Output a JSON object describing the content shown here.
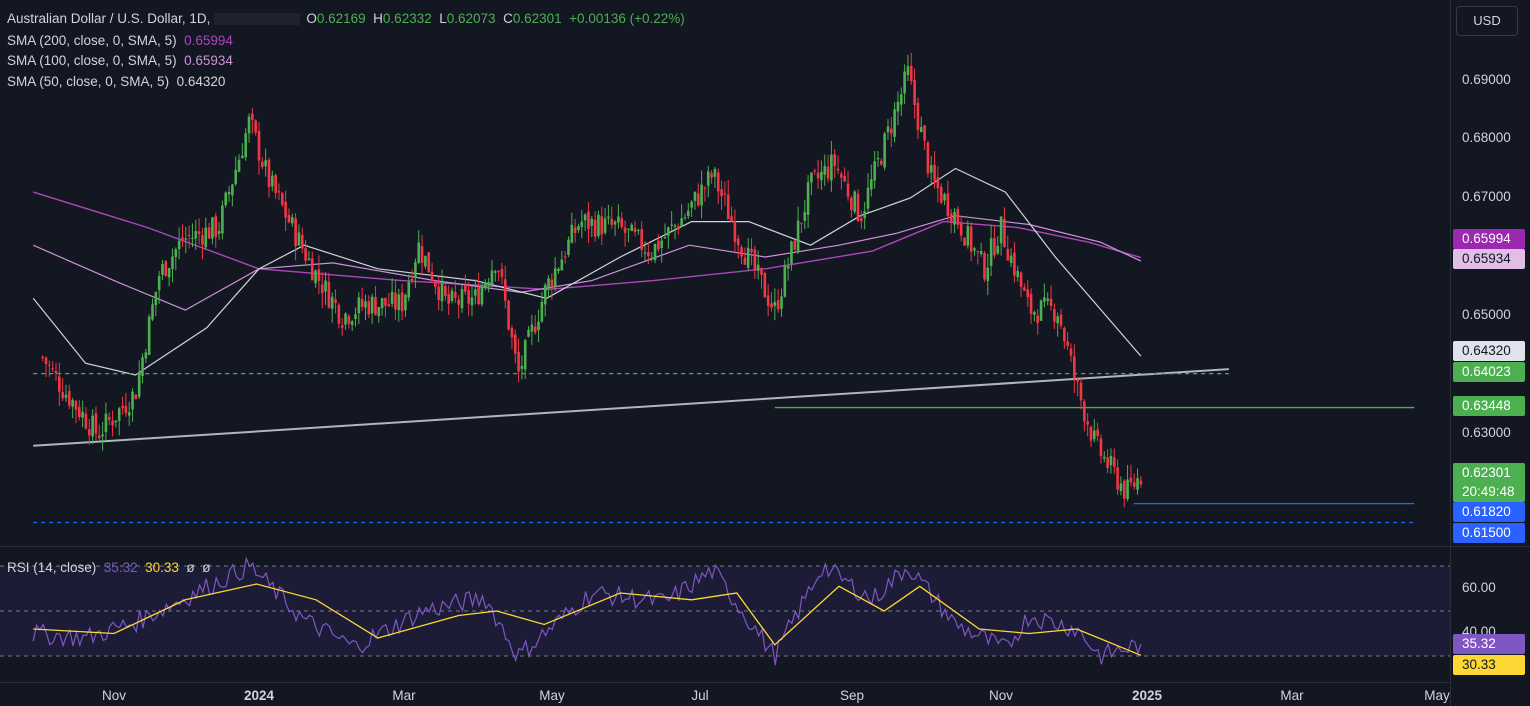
{
  "header": {
    "symbol": "Australian Dollar / U.S. Dollar, 1D,",
    "open_label": "O",
    "open": "0.62169",
    "high_label": "H",
    "high": "0.62332",
    "low_label": "L",
    "low": "0.62073",
    "close_label": "C",
    "close": "0.62301",
    "change": "+0.00136 (+0.22%)"
  },
  "indicators": [
    {
      "label": "SMA (200, close, 0, SMA, 5)",
      "value": "0.65994",
      "color": "#ab47bc"
    },
    {
      "label": "SMA (100, close, 0, SMA, 5)",
      "value": "0.65934",
      "color": "#ce93d8"
    },
    {
      "label": "SMA (50, close, 0, SMA, 5)",
      "value": "0.64320",
      "color": "#d1d4dc"
    }
  ],
  "currency": "USD",
  "rsi": {
    "label": "RSI (14, close)",
    "value": "35.32",
    "ma_value": "30.33",
    "extra1": "ø",
    "extra2": "ø",
    "ticks": [
      "60.00",
      "40.00"
    ],
    "levels": [
      70,
      50,
      30
    ],
    "tag_rsi": "35.32",
    "tag_ma": "30.33"
  },
  "price_tags": [
    {
      "text": "0.65994",
      "bg": "#9c27b0",
      "fg": "#ffffff"
    },
    {
      "text": "0.65934",
      "bg": "#e1bee7",
      "fg": "#131722"
    },
    {
      "text": "0.64320",
      "bg": "#e0e3eb",
      "fg": "#131722"
    },
    {
      "text": "0.64023",
      "bg": "#4caf50",
      "fg": "#ffffff"
    },
    {
      "text": "0.63448",
      "bg": "#4caf50",
      "fg": "#ffffff"
    },
    {
      "text": "0.62301",
      "bg": "#4caf50",
      "fg": "#ffffff"
    },
    {
      "text": "20:49:48",
      "bg": "#4caf50",
      "fg": "#ffffff"
    },
    {
      "text": "0.61820",
      "bg": "#2962ff",
      "fg": "#ffffff"
    },
    {
      "text": "0.61500",
      "bg": "#2962ff",
      "fg": "#ffffff"
    }
  ],
  "chart_data": {
    "type": "candlestick",
    "title": "Australian Dollar / U.S. Dollar, 1D",
    "y_ticks": [
      "0.69000",
      "0.68000",
      "0.67000",
      "0.65000",
      "0.63000"
    ],
    "ylim": [
      0.6135,
      0.6955
    ],
    "x_ticks": [
      "Nov",
      "2024",
      "Mar",
      "May",
      "Jul",
      "Sep",
      "Nov",
      "2025",
      "Mar",
      "May"
    ],
    "close_path": [
      [
        "2023-10-02",
        0.643
      ],
      [
        "2023-10-10",
        0.638
      ],
      [
        "2023-10-25",
        0.63
      ],
      [
        "2023-11-01",
        0.633
      ],
      [
        "2023-11-10",
        0.637
      ],
      [
        "2023-11-20",
        0.657
      ],
      [
        "2023-11-30",
        0.663
      ],
      [
        "2023-12-15",
        0.665
      ],
      [
        "2023-12-28",
        0.683
      ],
      [
        "2024-01-05",
        0.673
      ],
      [
        "2024-01-15",
        0.665
      ],
      [
        "2024-01-25",
        0.657
      ],
      [
        "2024-02-05",
        0.65
      ],
      [
        "2024-02-15",
        0.652
      ],
      [
        "2024-03-01",
        0.652
      ],
      [
        "2024-03-08",
        0.662
      ],
      [
        "2024-03-20",
        0.652
      ],
      [
        "2024-04-01",
        0.653
      ],
      [
        "2024-04-10",
        0.66
      ],
      [
        "2024-04-19",
        0.64
      ],
      [
        "2024-05-01",
        0.655
      ],
      [
        "2024-05-15",
        0.666
      ],
      [
        "2024-05-31",
        0.665
      ],
      [
        "2024-06-14",
        0.661
      ],
      [
        "2024-06-28",
        0.667
      ],
      [
        "2024-07-10",
        0.674
      ],
      [
        "2024-07-22",
        0.662
      ],
      [
        "2024-08-05",
        0.651
      ],
      [
        "2024-08-20",
        0.672
      ],
      [
        "2024-08-30",
        0.676
      ],
      [
        "2024-09-10",
        0.667
      ],
      [
        "2024-09-30",
        0.691
      ],
      [
        "2024-10-10",
        0.673
      ],
      [
        "2024-10-20",
        0.667
      ],
      [
        "2024-11-01",
        0.658
      ],
      [
        "2024-11-08",
        0.665
      ],
      [
        "2024-11-20",
        0.651
      ],
      [
        "2024-12-02",
        0.651
      ],
      [
        "2024-12-10",
        0.638
      ],
      [
        "2024-12-18",
        0.628
      ],
      [
        "2024-12-31",
        0.62
      ],
      [
        "2025-01-06",
        0.623
      ]
    ],
    "sma200_path": [
      [
        "2023-09-28",
        0.671
      ],
      [
        "2023-11-15",
        0.665
      ],
      [
        "2024-01-01",
        0.658
      ],
      [
        "2024-03-01",
        0.656
      ],
      [
        "2024-05-01",
        0.6545
      ],
      [
        "2024-06-15",
        0.656
      ],
      [
        "2024-08-01",
        0.658
      ],
      [
        "2024-09-15",
        0.661
      ],
      [
        "2024-10-15",
        0.666
      ],
      [
        "2024-11-15",
        0.665
      ],
      [
        "2024-12-15",
        0.6625
      ],
      [
        "2025-01-06",
        0.6599
      ]
    ],
    "sma100_path": [
      [
        "2023-09-28",
        0.662
      ],
      [
        "2023-11-01",
        0.656
      ],
      [
        "2023-12-01",
        0.651
      ],
      [
        "2024-01-01",
        0.658
      ],
      [
        "2024-02-01",
        0.659
      ],
      [
        "2024-03-15",
        0.656
      ],
      [
        "2024-04-20",
        0.654
      ],
      [
        "2024-05-20",
        0.656
      ],
      [
        "2024-06-30",
        0.662
      ],
      [
        "2024-08-01",
        0.66
      ],
      [
        "2024-09-01",
        0.662
      ],
      [
        "2024-09-25",
        0.664
      ],
      [
        "2024-10-20",
        0.667
      ],
      [
        "2024-11-20",
        0.6655
      ],
      [
        "2024-12-20",
        0.6625
      ],
      [
        "2025-01-06",
        0.6593
      ]
    ],
    "sma50_path": [
      [
        "2023-09-28",
        0.653
      ],
      [
        "2023-10-20",
        0.642
      ],
      [
        "2023-11-10",
        0.64
      ],
      [
        "2023-12-10",
        0.648
      ],
      [
        "2024-01-01",
        0.658
      ],
      [
        "2024-01-20",
        0.662
      ],
      [
        "2024-02-20",
        0.658
      ],
      [
        "2024-04-01",
        0.656
      ],
      [
        "2024-05-01",
        0.653
      ],
      [
        "2024-06-01",
        0.66
      ],
      [
        "2024-07-01",
        0.666
      ],
      [
        "2024-07-25",
        0.666
      ],
      [
        "2024-08-20",
        0.662
      ],
      [
        "2024-09-10",
        0.667
      ],
      [
        "2024-10-01",
        0.67
      ],
      [
        "2024-10-20",
        0.675
      ],
      [
        "2024-11-10",
        0.671
      ],
      [
        "2024-12-01",
        0.66
      ],
      [
        "2025-01-06",
        0.6432
      ]
    ],
    "trendline": [
      [
        "2023-09-28",
        0.628
      ],
      [
        "2025-02-12",
        0.641
      ]
    ],
    "horizontal_lines": [
      {
        "price": 0.64023,
        "from": "2023-09-28",
        "to": "2025-02-12",
        "style": "dashed",
        "color": "#4caf50"
      },
      {
        "price": 0.63448,
        "from": "2024-08-05",
        "to": "2025-05-01",
        "style": "solid",
        "color": "#4caf50"
      },
      {
        "price": 0.6182,
        "from": "2025-01-03",
        "to": "2025-05-01",
        "style": "solid",
        "color": "#2962ff"
      },
      {
        "price": 0.615,
        "from": "2023-09-28",
        "to": "2025-05-01",
        "style": "dashed",
        "color": "#2962ff"
      }
    ],
    "rsi_path": [
      [
        "2023-09-28",
        40
      ],
      [
        "2023-10-20",
        38
      ],
      [
        "2023-11-10",
        45
      ],
      [
        "2023-12-05",
        58
      ],
      [
        "2023-12-28",
        70
      ],
      [
        "2024-01-20",
        46
      ],
      [
        "2024-02-10",
        34
      ],
      [
        "2024-03-10",
        50
      ],
      [
        "2024-04-05",
        56
      ],
      [
        "2024-04-19",
        30
      ],
      [
        "2024-05-20",
        58
      ],
      [
        "2024-06-20",
        54
      ],
      [
        "2024-07-10",
        68
      ],
      [
        "2024-08-05",
        30
      ],
      [
        "2024-08-25",
        70
      ],
      [
        "2024-09-15",
        55
      ],
      [
        "2024-09-30",
        70
      ],
      [
        "2024-10-20",
        44
      ],
      [
        "2024-11-10",
        33
      ],
      [
        "2024-11-20",
        48
      ],
      [
        "2024-12-10",
        42
      ],
      [
        "2024-12-20",
        30
      ],
      [
        "2025-01-06",
        35.32
      ]
    ],
    "rsi_ma_path": [
      [
        "2023-09-28",
        42
      ],
      [
        "2023-11-01",
        40
      ],
      [
        "2023-12-01",
        55
      ],
      [
        "2023-12-31",
        62
      ],
      [
        "2024-01-25",
        55
      ],
      [
        "2024-02-20",
        38
      ],
      [
        "2024-03-25",
        48
      ],
      [
        "2024-04-10",
        50
      ],
      [
        "2024-04-30",
        44
      ],
      [
        "2024-06-01",
        58
      ],
      [
        "2024-07-01",
        55
      ],
      [
        "2024-07-20",
        58
      ],
      [
        "2024-08-05",
        35
      ],
      [
        "2024-09-01",
        61
      ],
      [
        "2024-09-20",
        50
      ],
      [
        "2024-10-05",
        61
      ],
      [
        "2024-10-30",
        42
      ],
      [
        "2024-11-20",
        40
      ],
      [
        "2024-12-10",
        42
      ],
      [
        "2025-01-06",
        30.33
      ]
    ]
  }
}
